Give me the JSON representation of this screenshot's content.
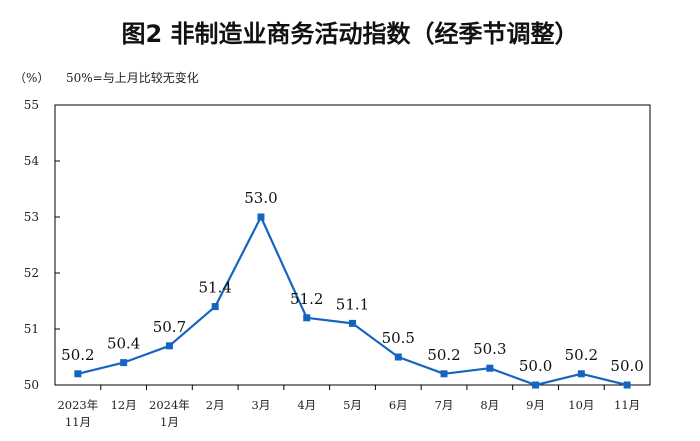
{
  "chart_data": {
    "type": "line",
    "title": "图2  非制造业商务活动指数（经季节调整）",
    "unit_label": "（%）",
    "note": "50%=与上月比较无变化",
    "categories": [
      [
        "2023年",
        "11月"
      ],
      [
        "12月"
      ],
      [
        "2024年",
        "1月"
      ],
      [
        "2月"
      ],
      [
        "3月"
      ],
      [
        "4月"
      ],
      [
        "5月"
      ],
      [
        "6月"
      ],
      [
        "7月"
      ],
      [
        "8月"
      ],
      [
        "9月"
      ],
      [
        "10月"
      ],
      [
        "11月"
      ]
    ],
    "series": [
      {
        "values": [
          50.2,
          50.4,
          50.7,
          51.4,
          53.0,
          51.2,
          51.1,
          50.5,
          50.2,
          50.3,
          50.0,
          50.2,
          50.0
        ],
        "data_labels": [
          "50.2",
          "50.4",
          "50.7",
          "51.4",
          "53.0",
          "51.2",
          "51.1",
          "50.5",
          "50.2",
          "50.3",
          "50.0",
          "50.2",
          "50.0"
        ],
        "color": "#1565c0"
      }
    ],
    "ylim": [
      50,
      55
    ],
    "yticks": [
      "50",
      "51",
      "52",
      "53",
      "54",
      "55"
    ],
    "grid": false,
    "legend": "none",
    "axis_color": "#000000"
  }
}
